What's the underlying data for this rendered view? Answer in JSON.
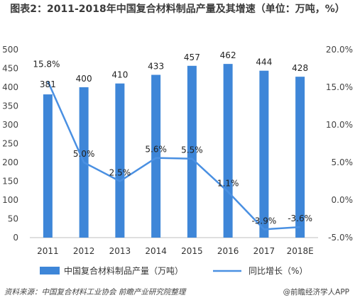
{
  "title": "图表2：2011-2018年中国复合材料制品产量及其增速（单位：万吨，%）",
  "source": "资料来源：中国复合材料工业协会   前瞻产业研究院整理",
  "brand": "@前瞻经济学人APP",
  "chart_data": {
    "type": "bar",
    "categories": [
      "2011",
      "2012",
      "2013",
      "2014",
      "2015",
      "2016",
      "2017",
      "2018E"
    ],
    "series": [
      {
        "name": "中国复合材料制品产量（万吨）",
        "type": "bar",
        "axis": "left",
        "values": [
          381,
          400,
          410,
          433,
          457,
          462,
          444,
          428
        ],
        "labels": [
          "381",
          "400",
          "410",
          "433",
          "457",
          "462",
          "444",
          "428"
        ]
      },
      {
        "name": "同比增长（%）",
        "type": "line",
        "axis": "right",
        "values": [
          15.8,
          5.0,
          2.5,
          5.6,
          5.5,
          1.1,
          -3.9,
          -3.6
        ],
        "labels": [
          "15.8%",
          "5.0%",
          "2.5%",
          "5.6%",
          "5.5%",
          "1.1%",
          "-3.9%",
          "-3.6%"
        ]
      }
    ],
    "y_left": {
      "ylim": [
        0,
        500
      ],
      "ticks": [
        "0",
        "50",
        "100",
        "150",
        "200",
        "250",
        "300",
        "350",
        "400",
        "450",
        "500"
      ]
    },
    "y_right": {
      "ylim": [
        -5,
        20
      ],
      "ticks": [
        "-5.0%",
        "0.0%",
        "5.0%",
        "10.0%",
        "15.0%",
        "20.0%"
      ]
    },
    "legend_position": "bottom",
    "colors": {
      "bar": "#3e86d8",
      "line": "#4a90e2"
    }
  }
}
